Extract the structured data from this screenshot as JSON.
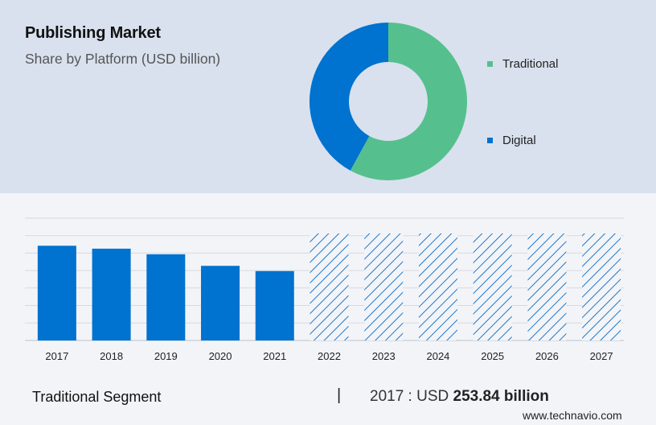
{
  "header": {
    "title": "Publishing Market",
    "subtitle": "Share by Platform (USD billion)"
  },
  "chart_data": [
    {
      "type": "pie",
      "variant": "donut",
      "categories": [
        "Traditional",
        "Digital"
      ],
      "values": [
        58,
        42
      ],
      "colors": [
        "#55c08e",
        "#0072cf"
      ],
      "legend": {
        "position": "right",
        "entries": [
          "Traditional",
          "Digital"
        ]
      }
    },
    {
      "type": "bar",
      "categories": [
        "2017",
        "2018",
        "2019",
        "2020",
        "2021",
        "2022",
        "2023",
        "2024",
        "2025",
        "2026",
        "2027"
      ],
      "series": [
        {
          "values": [
            253.84,
            246,
            231,
            200,
            186,
            null,
            null,
            null,
            null,
            null,
            null
          ]
        }
      ],
      "forecast_categories": [
        "2022",
        "2023",
        "2024",
        "2025",
        "2026",
        "2027"
      ],
      "forecast_style": "hatched",
      "colors": {
        "historic": "#0072cf",
        "forecast_hatch": "#1f78c8"
      },
      "grid": true
    }
  ],
  "footer": {
    "segment_label": "Traditional Segment",
    "separator": "|",
    "value_prefix": "2017 : USD",
    "value_bold": "253.84 billion"
  },
  "brand": "www.technavio.com"
}
